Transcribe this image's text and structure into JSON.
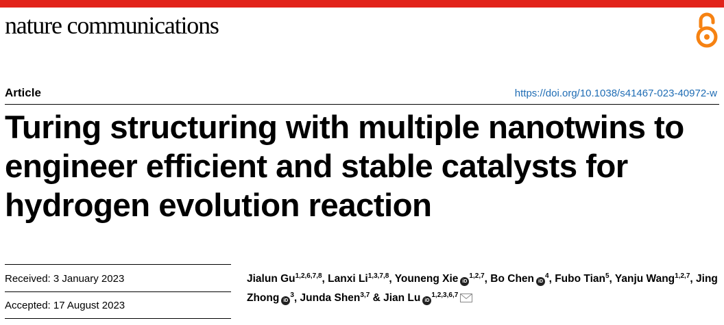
{
  "journal": {
    "name": "nature communications",
    "accent_color": "#e2231a",
    "open_access_icon": "open-access-icon",
    "open_access_color": "#f68212"
  },
  "article": {
    "type": "Article",
    "doi": "https://doi.org/10.1038/s41467-023-40972-w",
    "title": "Turing structuring with multiple nanotwins to engineer efficient and stable catalysts for hydrogen evolution reaction"
  },
  "dates": {
    "received": "Received: 3 January 2023",
    "accepted": "Accepted: 17 August 2023"
  },
  "authors": [
    {
      "name": "Jialun Gu",
      "affil": "1,2,6,7,8",
      "orcid": false
    },
    {
      "name": "Lanxi Li",
      "affil": "1,3,7,8",
      "orcid": false
    },
    {
      "name": "Youneng Xie",
      "affil": "1,2,7",
      "orcid": true
    },
    {
      "name": "Bo Chen",
      "affil": "4",
      "orcid": true
    },
    {
      "name": "Fubo Tian",
      "affil": "5",
      "orcid": false
    },
    {
      "name": "Yanju Wang",
      "affil": "1,2,7",
      "orcid": false
    },
    {
      "name": "Jing Zhong",
      "affil": "3",
      "orcid": true
    },
    {
      "name": "Junda Shen",
      "affil": "3,7",
      "orcid": false
    },
    {
      "name": "Jian Lu",
      "affil": "1,2,3,6,7",
      "orcid": true,
      "corresponding": true
    }
  ],
  "orcid_label": "iD",
  "separators": {
    "comma": ", ",
    "and": " & "
  }
}
